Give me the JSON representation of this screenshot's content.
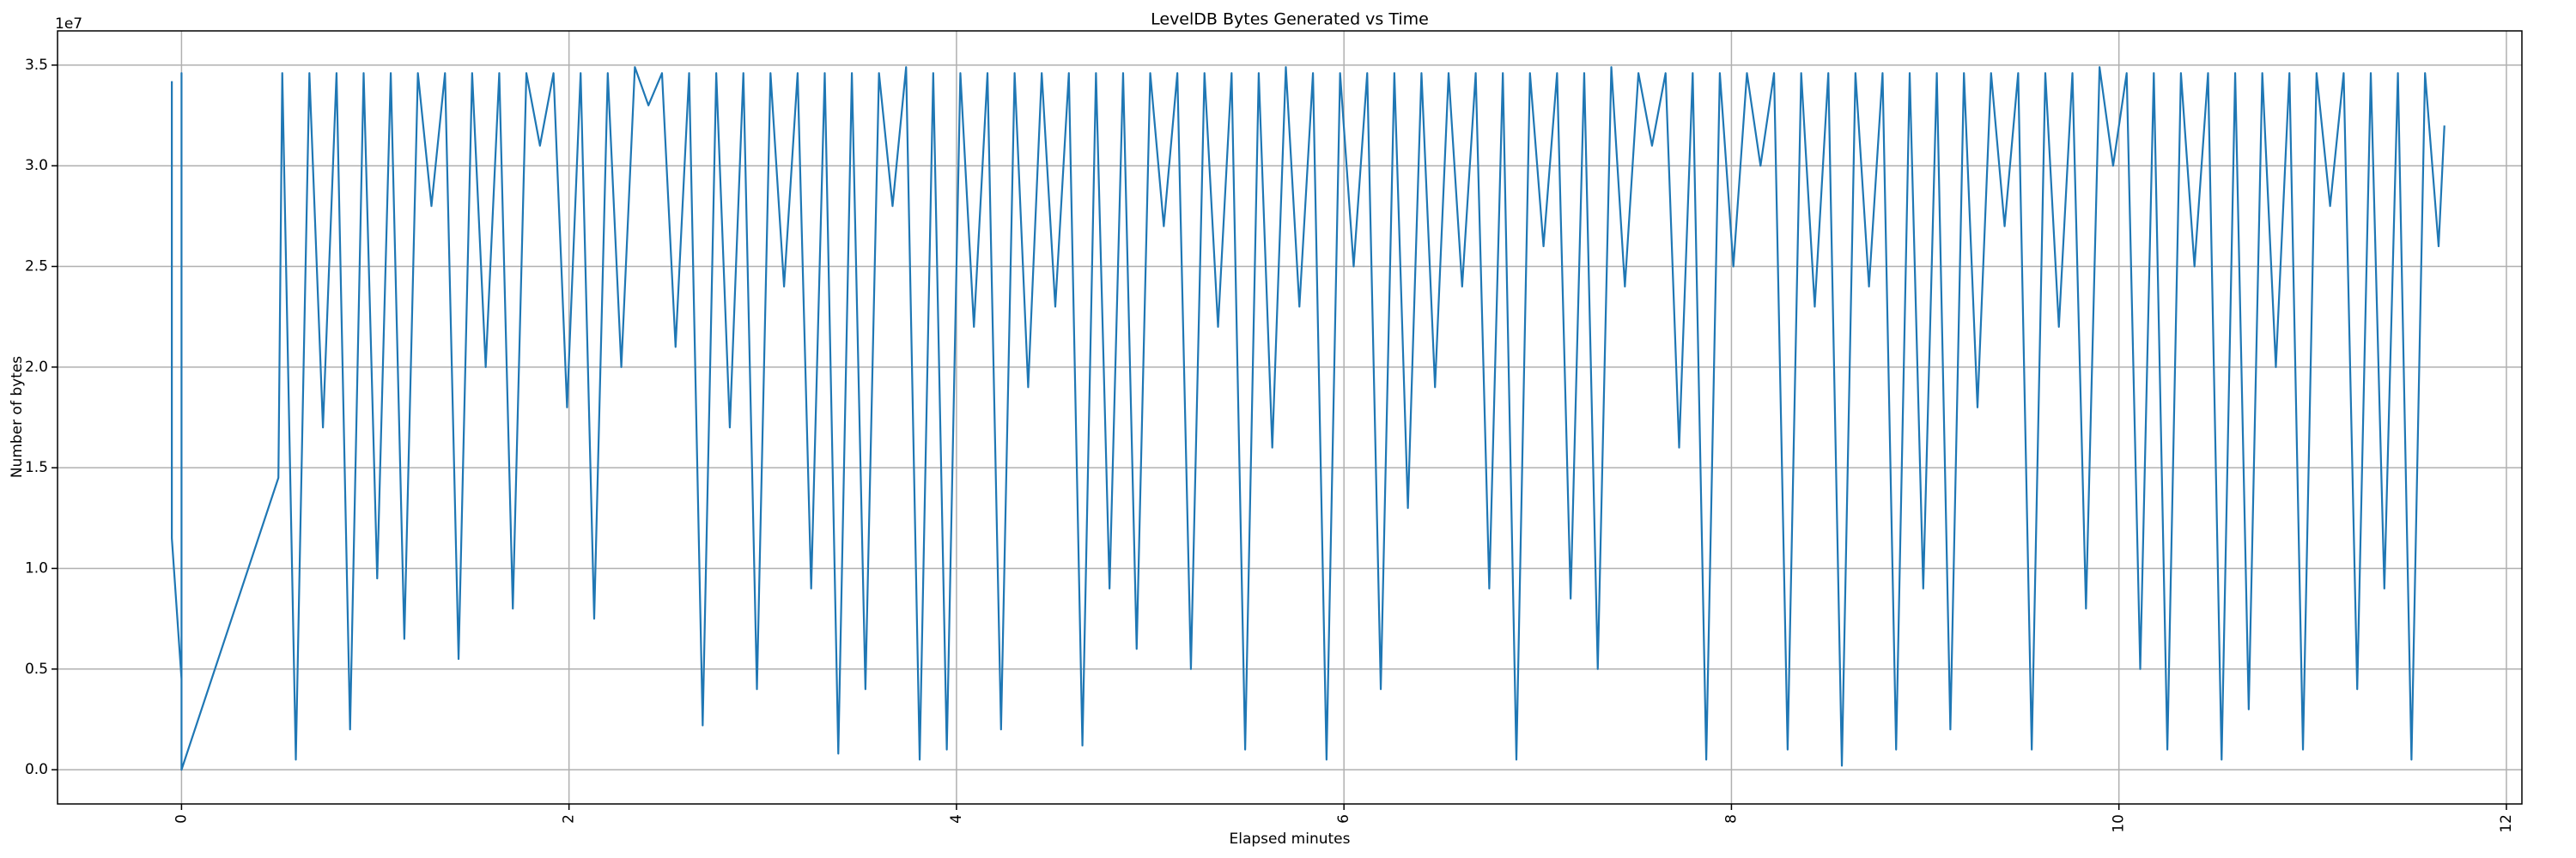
{
  "chart_data": {
    "type": "line",
    "title": "LevelDB Bytes Generated vs Time",
    "xlabel": "Elapsed minutes",
    "ylabel": "Number of bytes",
    "y_offset_label": "1e7",
    "color": "#1f77b4",
    "grid": true,
    "xlim": [
      -0.64,
      12.08
    ],
    "ylim": [
      -1700000,
      36700000
    ],
    "xticks": [
      0,
      2,
      4,
      6,
      8,
      10,
      12
    ],
    "yticks": [
      {
        "value": 0,
        "label": "0.0"
      },
      {
        "value": 5000000,
        "label": "0.5"
      },
      {
        "value": 10000000,
        "label": "1.0"
      },
      {
        "value": 15000000,
        "label": "1.5"
      },
      {
        "value": 20000000,
        "label": "2.0"
      },
      {
        "value": 25000000,
        "label": "2.5"
      },
      {
        "value": 30000000,
        "label": "3.0"
      },
      {
        "value": 35000000,
        "label": "3.5"
      }
    ],
    "x": [
      -0.05,
      -0.05,
      0,
      0,
      0,
      0.5,
      0.52,
      0.59,
      0.66,
      0.73,
      0.8,
      0.87,
      0.94,
      1.01,
      1.08,
      1.15,
      1.22,
      1.29,
      1.36,
      1.43,
      1.5,
      1.57,
      1.64,
      1.71,
      1.78,
      1.85,
      1.92,
      1.99,
      2.06,
      2.13,
      2.2,
      2.27,
      2.34,
      2.41,
      2.48,
      2.55,
      2.62,
      2.69,
      2.76,
      2.83,
      2.9,
      2.97,
      3.04,
      3.11,
      3.18,
      3.25,
      3.32,
      3.39,
      3.46,
      3.53,
      3.6,
      3.67,
      3.74,
      3.81,
      3.88,
      3.95,
      4.02,
      4.09,
      4.16,
      4.23,
      4.3,
      4.37,
      4.44,
      4.51,
      4.58,
      4.65,
      4.72,
      4.79,
      4.86,
      4.93,
      5.0,
      5.07,
      5.14,
      5.21,
      5.28,
      5.35,
      5.42,
      5.49,
      5.56,
      5.63,
      5.7,
      5.77,
      5.84,
      5.91,
      5.98,
      6.05,
      6.12,
      6.19,
      6.26,
      6.33,
      6.4,
      6.47,
      6.54,
      6.61,
      6.68,
      6.75,
      6.82,
      6.89,
      6.96,
      7.03,
      7.1,
      7.17,
      7.24,
      7.31,
      7.38,
      7.45,
      7.52,
      7.59,
      7.66,
      7.73,
      7.8,
      7.87,
      7.94,
      8.01,
      8.08,
      8.15,
      8.22,
      8.29,
      8.36,
      8.43,
      8.5,
      8.57,
      8.64,
      8.71,
      8.78,
      8.85,
      8.92,
      8.99,
      9.06,
      9.13,
      9.2,
      9.27,
      9.34,
      9.41,
      9.48,
      9.55,
      9.62,
      9.69,
      9.76,
      9.83,
      9.9,
      9.97,
      10.04,
      10.11,
      10.18,
      10.25,
      10.32,
      10.39,
      10.46,
      10.53,
      10.6,
      10.67,
      10.74,
      10.81,
      10.88,
      10.95,
      11.02,
      11.09,
      11.16,
      11.23,
      11.3,
      11.37,
      11.44,
      11.51,
      11.58,
      11.65,
      11.68
    ],
    "values": [
      34200000,
      11500000,
      4500000,
      34600000,
      0,
      14500000,
      34600000,
      500000,
      34600000,
      17000000,
      34600000,
      2000000,
      34600000,
      9500000,
      34600000,
      6500000,
      34600000,
      28000000,
      34600000,
      5500000,
      34600000,
      20000000,
      34600000,
      8000000,
      34600000,
      31000000,
      34600000,
      18000000,
      34600000,
      7500000,
      34600000,
      20000000,
      34900000,
      33000000,
      34600000,
      21000000,
      34600000,
      2200000,
      34600000,
      17000000,
      34600000,
      4000000,
      34600000,
      24000000,
      34600000,
      9000000,
      34600000,
      800000,
      34600000,
      4000000,
      34600000,
      28000000,
      34900000,
      500000,
      34600000,
      1000000,
      34600000,
      22000000,
      34600000,
      2000000,
      34600000,
      19000000,
      34600000,
      23000000,
      34600000,
      1200000,
      34600000,
      9000000,
      34600000,
      6000000,
      34600000,
      27000000,
      34600000,
      5000000,
      34600000,
      22000000,
      34600000,
      1000000,
      34600000,
      16000000,
      34900000,
      23000000,
      34600000,
      500000,
      34600000,
      25000000,
      34600000,
      4000000,
      34600000,
      13000000,
      34600000,
      19000000,
      34600000,
      24000000,
      34600000,
      9000000,
      34600000,
      500000,
      34600000,
      26000000,
      34600000,
      8500000,
      34600000,
      5000000,
      34900000,
      24000000,
      34600000,
      31000000,
      34600000,
      16000000,
      34600000,
      500000,
      34600000,
      25000000,
      34600000,
      30000000,
      34600000,
      1000000,
      34600000,
      23000000,
      34600000,
      200000,
      34600000,
      24000000,
      34600000,
      1000000,
      34600000,
      9000000,
      34600000,
      2000000,
      34600000,
      18000000,
      34600000,
      27000000,
      34600000,
      1000000,
      34600000,
      22000000,
      34600000,
      8000000,
      34900000,
      30000000,
      34600000,
      5000000,
      34600000,
      1000000,
      34600000,
      25000000,
      34600000,
      500000,
      34600000,
      3000000,
      34600000,
      20000000,
      34600000,
      1000000,
      34600000,
      28000000,
      34600000,
      4000000,
      34600000,
      9000000,
      34600000,
      500000,
      34600000,
      26000000,
      32000000
    ]
  }
}
